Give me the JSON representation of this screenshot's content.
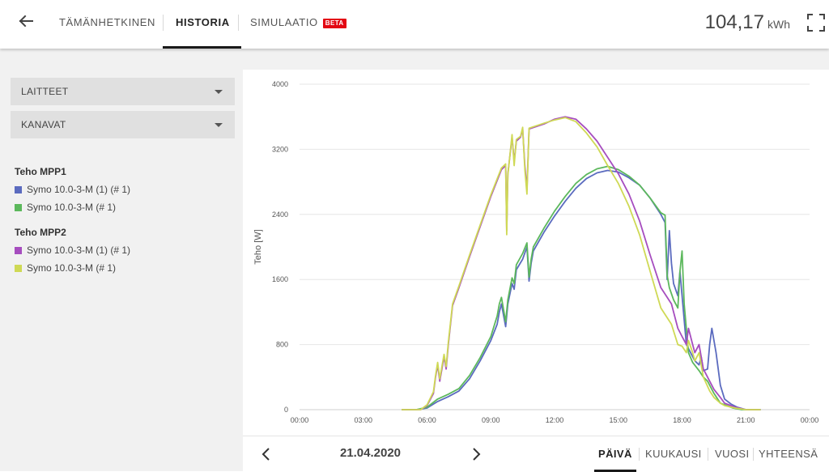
{
  "header": {
    "tabs": [
      {
        "label": "TÄMÄNHETKINEN",
        "active": false
      },
      {
        "label": "HISTORIA",
        "active": true
      },
      {
        "label": "SIMULAATIO",
        "active": false,
        "badge": "BETA"
      }
    ],
    "energy_value": "104,17",
    "energy_unit": "kWh",
    "icons": {
      "back": "arrow-left-icon",
      "fullscreen": "fullscreen-icon"
    }
  },
  "sidebar": {
    "dropdowns": [
      {
        "label": "LAITTEET"
      },
      {
        "label": "KANAVAT"
      }
    ],
    "groups": [
      {
        "title": "Teho MPP1",
        "items": [
          {
            "label": "Symo 10.0-3-M (1) (# 1)",
            "color": "#5b6bbf"
          },
          {
            "label": "Symo 10.0-3-M (# 1)",
            "color": "#5cb85c"
          }
        ]
      },
      {
        "title": "Teho MPP2",
        "items": [
          {
            "label": "Symo 10.0-3-M (1) (# 1)",
            "color": "#a64dbf"
          },
          {
            "label": "Symo 10.0-3-M (# 1)",
            "color": "#cfd955"
          }
        ]
      }
    ]
  },
  "chart_data": {
    "type": "line",
    "ylabel": "Teho [W]",
    "ylim": [
      0,
      4000
    ],
    "yticks": [
      0,
      800,
      1600,
      2400,
      3200,
      4000
    ],
    "xlim": [
      0,
      24
    ],
    "xticks": [
      "00:00",
      "03:00",
      "06:00",
      "09:00",
      "12:00",
      "15:00",
      "18:00",
      "21:00",
      "00:00"
    ],
    "grid": "horizontal",
    "series": [
      {
        "name": "Symo 10.0-3-M (1) (# 1)",
        "group": "Teho MPP1",
        "color": "#5b6bbf",
        "points": [
          [
            4.8,
            0
          ],
          [
            5.5,
            0
          ],
          [
            6.0,
            20
          ],
          [
            6.5,
            100
          ],
          [
            7.0,
            160
          ],
          [
            7.5,
            230
          ],
          [
            8.0,
            380
          ],
          [
            8.5,
            600
          ],
          [
            9.0,
            850
          ],
          [
            9.3,
            1050
          ],
          [
            9.4,
            1200
          ],
          [
            9.5,
            1300
          ],
          [
            9.7,
            1020
          ],
          [
            9.8,
            1300
          ],
          [
            10.0,
            1550
          ],
          [
            10.1,
            1480
          ],
          [
            10.2,
            1720
          ],
          [
            10.5,
            1850
          ],
          [
            10.7,
            2000
          ],
          [
            10.8,
            1580
          ],
          [
            10.9,
            1800
          ],
          [
            11.0,
            1950
          ],
          [
            11.5,
            2180
          ],
          [
            12.0,
            2380
          ],
          [
            12.5,
            2560
          ],
          [
            13.0,
            2720
          ],
          [
            13.5,
            2840
          ],
          [
            14.0,
            2910
          ],
          [
            14.5,
            2940
          ],
          [
            15.0,
            2920
          ],
          [
            15.5,
            2850
          ],
          [
            16.0,
            2760
          ],
          [
            16.5,
            2600
          ],
          [
            17.0,
            2400
          ],
          [
            17.2,
            2300
          ],
          [
            17.3,
            1600
          ],
          [
            17.4,
            2200
          ],
          [
            17.5,
            1800
          ],
          [
            17.6,
            1550
          ],
          [
            17.8,
            1400
          ],
          [
            17.9,
            1700
          ],
          [
            18.0,
            1400
          ],
          [
            18.2,
            800
          ],
          [
            18.4,
            700
          ],
          [
            18.6,
            600
          ],
          [
            18.8,
            550
          ],
          [
            18.9,
            650
          ],
          [
            19.0,
            480
          ],
          [
            19.2,
            500
          ],
          [
            19.3,
            800
          ],
          [
            19.4,
            1000
          ],
          [
            19.6,
            700
          ],
          [
            19.8,
            300
          ],
          [
            20.0,
            130
          ],
          [
            20.3,
            70
          ],
          [
            20.6,
            30
          ],
          [
            21.0,
            0
          ],
          [
            21.7,
            0
          ]
        ]
      },
      {
        "name": "Symo 10.0-3-M (# 1)",
        "group": "Teho MPP1",
        "color": "#5cb85c",
        "points": [
          [
            4.8,
            0
          ],
          [
            5.5,
            0
          ],
          [
            6.0,
            30
          ],
          [
            6.5,
            130
          ],
          [
            7.0,
            190
          ],
          [
            7.5,
            260
          ],
          [
            8.0,
            420
          ],
          [
            8.5,
            640
          ],
          [
            9.0,
            900
          ],
          [
            9.3,
            1150
          ],
          [
            9.4,
            1300
          ],
          [
            9.5,
            1380
          ],
          [
            9.7,
            1080
          ],
          [
            9.8,
            1350
          ],
          [
            10.0,
            1620
          ],
          [
            10.1,
            1550
          ],
          [
            10.2,
            1780
          ],
          [
            10.5,
            1920
          ],
          [
            10.7,
            2050
          ],
          [
            10.8,
            1630
          ],
          [
            10.9,
            1850
          ],
          [
            11.0,
            2000
          ],
          [
            11.5,
            2230
          ],
          [
            12.0,
            2440
          ],
          [
            12.5,
            2620
          ],
          [
            13.0,
            2780
          ],
          [
            13.5,
            2890
          ],
          [
            14.0,
            2960
          ],
          [
            14.5,
            2990
          ],
          [
            15.0,
            2950
          ],
          [
            15.5,
            2870
          ],
          [
            16.0,
            2760
          ],
          [
            16.5,
            2600
          ],
          [
            17.0,
            2420
          ],
          [
            17.2,
            2390
          ],
          [
            17.3,
            1650
          ],
          [
            17.4,
            1500
          ],
          [
            17.6,
            1350
          ],
          [
            17.8,
            1250
          ],
          [
            17.9,
            1700
          ],
          [
            18.0,
            1950
          ],
          [
            18.1,
            1300
          ],
          [
            18.3,
            700
          ],
          [
            18.5,
            580
          ],
          [
            18.8,
            480
          ],
          [
            19.0,
            400
          ],
          [
            19.2,
            350
          ],
          [
            19.5,
            200
          ],
          [
            19.8,
            80
          ],
          [
            20.1,
            50
          ],
          [
            20.4,
            20
          ],
          [
            20.8,
            0
          ],
          [
            21.7,
            0
          ]
        ]
      },
      {
        "name": "Symo 10.0-3-M (1) (# 1)",
        "group": "Teho MPP2",
        "color": "#a64dbf",
        "points": [
          [
            4.8,
            0
          ],
          [
            5.7,
            0
          ],
          [
            6.0,
            50
          ],
          [
            6.3,
            200
          ],
          [
            6.4,
            400
          ],
          [
            6.5,
            550
          ],
          [
            6.6,
            350
          ],
          [
            6.8,
            650
          ],
          [
            6.9,
            500
          ],
          [
            7.0,
            800
          ],
          [
            7.2,
            1280
          ],
          [
            7.5,
            1500
          ],
          [
            8.0,
            1880
          ],
          [
            8.5,
            2250
          ],
          [
            9.0,
            2620
          ],
          [
            9.5,
            2950
          ],
          [
            9.7,
            3000
          ],
          [
            9.75,
            2200
          ],
          [
            9.8,
            2900
          ],
          [
            10.0,
            3350
          ],
          [
            10.1,
            3050
          ],
          [
            10.2,
            3300
          ],
          [
            10.4,
            3350
          ],
          [
            10.5,
            3450
          ],
          [
            10.6,
            3000
          ],
          [
            10.7,
            2700
          ],
          [
            10.8,
            3450
          ],
          [
            11.5,
            3510
          ],
          [
            12.0,
            3570
          ],
          [
            12.5,
            3600
          ],
          [
            13.0,
            3570
          ],
          [
            13.5,
            3450
          ],
          [
            14.0,
            3300
          ],
          [
            14.5,
            3100
          ],
          [
            15.0,
            2900
          ],
          [
            15.5,
            2650
          ],
          [
            16.0,
            2320
          ],
          [
            16.5,
            1900
          ],
          [
            17.0,
            1500
          ],
          [
            17.5,
            1300
          ],
          [
            17.8,
            1000
          ],
          [
            18.0,
            900
          ],
          [
            18.2,
            800
          ],
          [
            18.3,
            1000
          ],
          [
            18.5,
            800
          ],
          [
            18.6,
            700
          ],
          [
            18.8,
            800
          ],
          [
            19.0,
            500
          ],
          [
            19.3,
            350
          ],
          [
            19.5,
            250
          ],
          [
            19.8,
            150
          ],
          [
            20.0,
            80
          ],
          [
            20.5,
            30
          ],
          [
            21.0,
            0
          ],
          [
            21.7,
            0
          ]
        ]
      },
      {
        "name": "Symo 10.0-3-M (# 1)",
        "group": "Teho MPP2",
        "color": "#cfd955",
        "points": [
          [
            4.8,
            0
          ],
          [
            5.7,
            0
          ],
          [
            6.0,
            60
          ],
          [
            6.3,
            220
          ],
          [
            6.4,
            420
          ],
          [
            6.5,
            580
          ],
          [
            6.6,
            380
          ],
          [
            6.8,
            680
          ],
          [
            6.9,
            530
          ],
          [
            7.0,
            830
          ],
          [
            7.2,
            1300
          ],
          [
            7.5,
            1520
          ],
          [
            8.0,
            1900
          ],
          [
            8.5,
            2270
          ],
          [
            9.0,
            2640
          ],
          [
            9.5,
            2970
          ],
          [
            9.7,
            3020
          ],
          [
            9.75,
            2150
          ],
          [
            9.8,
            2880
          ],
          [
            10.0,
            3380
          ],
          [
            10.1,
            3000
          ],
          [
            10.2,
            3320
          ],
          [
            10.4,
            3360
          ],
          [
            10.5,
            3470
          ],
          [
            10.6,
            2950
          ],
          [
            10.7,
            2650
          ],
          [
            10.8,
            3460
          ],
          [
            11.5,
            3520
          ],
          [
            12.0,
            3560
          ],
          [
            12.5,
            3590
          ],
          [
            13.0,
            3540
          ],
          [
            13.5,
            3400
          ],
          [
            14.0,
            3230
          ],
          [
            14.5,
            3000
          ],
          [
            15.0,
            2780
          ],
          [
            15.5,
            2500
          ],
          [
            16.0,
            2150
          ],
          [
            16.5,
            1700
          ],
          [
            17.0,
            1250
          ],
          [
            17.5,
            1050
          ],
          [
            17.8,
            800
          ],
          [
            18.0,
            780
          ],
          [
            18.2,
            700
          ],
          [
            18.3,
            850
          ],
          [
            18.5,
            700
          ],
          [
            18.6,
            600
          ],
          [
            18.8,
            700
          ],
          [
            19.0,
            400
          ],
          [
            19.3,
            230
          ],
          [
            19.5,
            150
          ],
          [
            19.8,
            80
          ],
          [
            20.0,
            50
          ],
          [
            20.5,
            20
          ],
          [
            21.0,
            0
          ],
          [
            21.7,
            0
          ]
        ]
      }
    ]
  },
  "footer": {
    "date": "21.04.2020",
    "periods": [
      {
        "label": "PÄIVÄ",
        "active": true
      },
      {
        "label": "KUUKAUSI",
        "active": false
      },
      {
        "label": "VUOSI",
        "active": false
      },
      {
        "label": "YHTEENSÄ",
        "active": false
      }
    ],
    "icons": {
      "prev": "chevron-left-icon",
      "next": "chevron-right-icon"
    }
  }
}
